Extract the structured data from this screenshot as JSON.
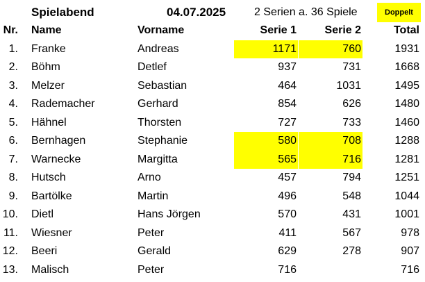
{
  "title_row": {
    "title": "Spielabend",
    "date": "04.07.2025",
    "series_info": "2 Serien a. 36 Spiele",
    "badge": "Doppelt"
  },
  "headers": {
    "nr": "Nr.",
    "name": "Name",
    "vorname": "Vorname",
    "serie1": "Serie 1",
    "serie2": "Serie 2",
    "total": "Total"
  },
  "rows": [
    {
      "nr": "1.",
      "name": "Franke",
      "vorname": "Andreas",
      "s1": "1171",
      "s2": "760",
      "total": "1931",
      "highlight": true
    },
    {
      "nr": "2.",
      "name": "Böhm",
      "vorname": "Detlef",
      "s1": "937",
      "s2": "731",
      "total": "1668",
      "highlight": false
    },
    {
      "nr": "3.",
      "name": "Melzer",
      "vorname": "Sebastian",
      "s1": "464",
      "s2": "1031",
      "total": "1495",
      "highlight": false
    },
    {
      "nr": "4.",
      "name": "Rademacher",
      "vorname": "Gerhard",
      "s1": "854",
      "s2": "626",
      "total": "1480",
      "highlight": false
    },
    {
      "nr": "5.",
      "name": "Hähnel",
      "vorname": "Thorsten",
      "s1": "727",
      "s2": "733",
      "total": "1460",
      "highlight": false
    },
    {
      "nr": "6.",
      "name": "Bernhagen",
      "vorname": "Stephanie",
      "s1": "580",
      "s2": "708",
      "total": "1288",
      "highlight": true
    },
    {
      "nr": "7.",
      "name": "Warnecke",
      "vorname": "Margitta",
      "s1": "565",
      "s2": "716",
      "total": "1281",
      "highlight": true
    },
    {
      "nr": "8.",
      "name": "Hutsch",
      "vorname": "Arno",
      "s1": "457",
      "s2": "794",
      "total": "1251",
      "highlight": false
    },
    {
      "nr": "9.",
      "name": "Bartölke",
      "vorname": "Martin",
      "s1": "496",
      "s2": "548",
      "total": "1044",
      "highlight": false
    },
    {
      "nr": "10.",
      "name": "Dietl",
      "vorname": "Hans Jörgen",
      "s1": "570",
      "s2": "431",
      "total": "1001",
      "highlight": false
    },
    {
      "nr": "11.",
      "name": "Wiesner",
      "vorname": "Peter",
      "s1": "411",
      "s2": "567",
      "total": "978",
      "highlight": false
    },
    {
      "nr": "12.",
      "name": "Beeri",
      "vorname": "Gerald",
      "s1": "629",
      "s2": "278",
      "total": "907",
      "highlight": false
    },
    {
      "nr": "13.",
      "name": "Malisch",
      "vorname": "Peter",
      "s1": "716",
      "s2": "",
      "total": "716",
      "highlight": false
    }
  ],
  "colors": {
    "highlight": "#ffff00"
  }
}
